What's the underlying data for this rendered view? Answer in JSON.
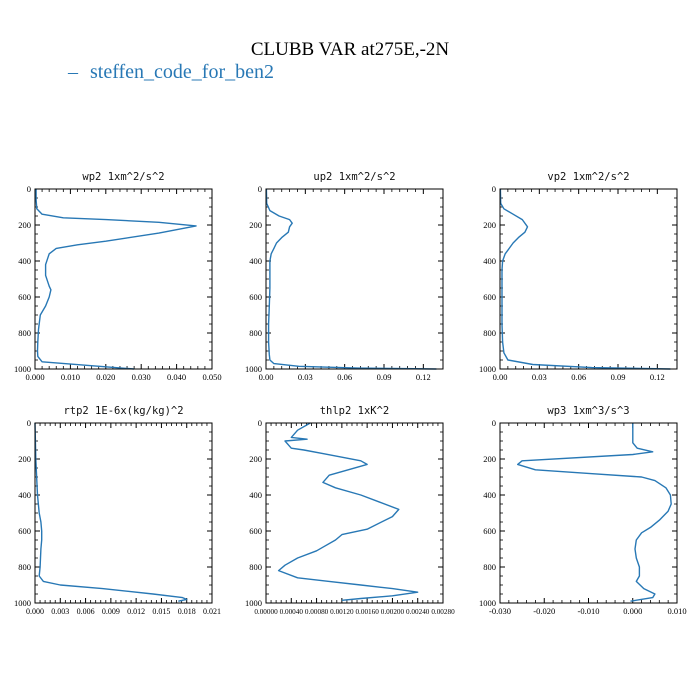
{
  "figure": {
    "title": "CLUBB VAR at275E,-2N",
    "legend": {
      "marker": "–",
      "label": "steffen_code_for_ben2",
      "color": "#2878b5"
    }
  },
  "chart_data": [
    {
      "type": "line",
      "title": "wp2  1xm^2/s^2",
      "xlim": [
        0,
        0.05
      ],
      "xticks": [
        "0.000",
        "0.010",
        "0.020",
        "0.030",
        "0.040",
        "0.050"
      ],
      "xtick_values": [
        0,
        0.01,
        0.02,
        0.03,
        0.04,
        0.05
      ],
      "ylim": [
        1000,
        0
      ],
      "yticks": [
        "0",
        "200",
        "400",
        "600",
        "800",
        "1000"
      ],
      "ytick_values": [
        0,
        200,
        400,
        600,
        800,
        1000
      ],
      "series": [
        {
          "color": "#2878b5",
          "x": [
            0.0003,
            0.0003,
            0.0005,
            0.002,
            0.008,
            0.02,
            0.035,
            0.0455,
            0.035,
            0.02,
            0.012,
            0.006,
            0.004,
            0.0035,
            0.003,
            0.003,
            0.003,
            0.0035,
            0.004,
            0.0045,
            0.004,
            0.003,
            0.0015,
            0.001,
            0.0008,
            0.0007,
            0.0008,
            0.002,
            0.015,
            0.028
          ],
          "y": [
            0,
            60,
            110,
            140,
            160,
            170,
            185,
            205,
            245,
            290,
            310,
            330,
            360,
            390,
            420,
            450,
            480,
            510,
            540,
            560,
            600,
            650,
            700,
            780,
            850,
            900,
            930,
            960,
            980,
            1000
          ]
        }
      ]
    },
    {
      "type": "line",
      "title": "up2  1xm^2/s^2",
      "xlim": [
        0,
        0.135
      ],
      "xticks": [
        "0.00",
        "0.03",
        "0.06",
        "0.09",
        "0.12"
      ],
      "xtick_values": [
        0,
        0.03,
        0.06,
        0.09,
        0.12
      ],
      "ylim": [
        1000,
        0
      ],
      "yticks": [
        "0",
        "200",
        "400",
        "600",
        "800",
        "1000"
      ],
      "ytick_values": [
        0,
        200,
        400,
        600,
        800,
        1000
      ],
      "series": [
        {
          "color": "#2878b5",
          "x": [
            0.0003,
            0.0005,
            0.003,
            0.01,
            0.018,
            0.02,
            0.018,
            0.017,
            0.012,
            0.008,
            0.006,
            0.004,
            0.003,
            0.003,
            0.003,
            0.0025,
            0.002,
            0.002,
            0.0025,
            0.003,
            0.006,
            0.025,
            0.07,
            0.13
          ],
          "y": [
            0,
            80,
            120,
            150,
            170,
            190,
            210,
            240,
            270,
            300,
            330,
            360,
            400,
            460,
            550,
            650,
            750,
            850,
            920,
            950,
            970,
            985,
            995,
            1000
          ]
        }
      ]
    },
    {
      "type": "line",
      "title": "vp2  1xm^2/s^2",
      "xlim": [
        0,
        0.135
      ],
      "xticks": [
        "0.00",
        "0.03",
        "0.06",
        "0.09",
        "0.12"
      ],
      "xtick_values": [
        0,
        0.03,
        0.06,
        0.09,
        0.12
      ],
      "ylim": [
        1000,
        0
      ],
      "yticks": [
        "0",
        "200",
        "400",
        "600",
        "800",
        "1000"
      ],
      "ytick_values": [
        0,
        200,
        400,
        600,
        800,
        1000
      ],
      "series": [
        {
          "color": "#2878b5",
          "x": [
            0.0003,
            0.0005,
            0.003,
            0.01,
            0.017,
            0.021,
            0.019,
            0.014,
            0.01,
            0.007,
            0.004,
            0.002,
            0.0015,
            0.0015,
            0.0015,
            0.0015,
            0.002,
            0.003,
            0.006,
            0.025,
            0.07,
            0.13
          ],
          "y": [
            0,
            80,
            110,
            140,
            170,
            210,
            240,
            270,
            300,
            330,
            360,
            400,
            450,
            550,
            650,
            750,
            850,
            910,
            950,
            975,
            992,
            1000
          ]
        }
      ]
    },
    {
      "type": "line",
      "title": "rtp2  1E-6x(kg/kg)^2",
      "xlim": [
        0,
        0.021
      ],
      "xticks": [
        "0.000",
        "0.003",
        "0.006",
        "0.009",
        "0.012",
        "0.015",
        "0.018",
        "0.021"
      ],
      "xtick_values": [
        0,
        0.003,
        0.006,
        0.009,
        0.012,
        0.015,
        0.018,
        0.021
      ],
      "ylim": [
        1000,
        0
      ],
      "yticks": [
        "0",
        "200",
        "400",
        "600",
        "800",
        "1000"
      ],
      "ytick_values": [
        0,
        200,
        400,
        600,
        800,
        1000
      ],
      "series": [
        {
          "color": "#2878b5",
          "x": [
            0.0,
            0.0001,
            0.0003,
            0.0005,
            0.0007,
            0.0008,
            0.0008,
            0.0007,
            0.0006,
            0.0005,
            0.001,
            0.003,
            0.008,
            0.014,
            0.0175,
            0.018,
            0.017
          ],
          "y": [
            0,
            200,
            400,
            500,
            550,
            600,
            650,
            700,
            800,
            850,
            880,
            900,
            920,
            950,
            970,
            980,
            990
          ]
        }
      ]
    },
    {
      "type": "line",
      "title": "thlp2  1xK^2",
      "xlim": [
        0,
        0.0028
      ],
      "xticks": [
        "0.00000",
        "0.00040",
        "0.00080",
        "0.00120",
        "0.00160",
        "0.00200",
        "0.00240",
        "0.00280"
      ],
      "xtick_values": [
        0,
        0.0004,
        0.0008,
        0.0012,
        0.0016,
        0.002,
        0.0024,
        0.0028
      ],
      "ylim": [
        1000,
        0
      ],
      "yticks": [
        "0",
        "200",
        "400",
        "600",
        "800",
        "1000"
      ],
      "ytick_values": [
        0,
        200,
        400,
        600,
        800,
        1000
      ],
      "series": [
        {
          "color": "#2878b5",
          "x": [
            0.0007,
            0.0005,
            0.0004,
            0.00065,
            0.0003,
            0.0004,
            0.0006,
            0.0009,
            0.0012,
            0.0015,
            0.0016,
            0.0013,
            0.001,
            0.0009,
            0.0011,
            0.0015,
            0.0018,
            0.0021,
            0.002,
            0.0016,
            0.0012,
            0.0011,
            0.0009,
            0.0008,
            0.0005,
            0.0003,
            0.0002,
            0.0005,
            0.001,
            0.0015,
            0.002,
            0.0024,
            0.002,
            0.0015,
            0.0012
          ],
          "y": [
            0,
            40,
            80,
            90,
            100,
            140,
            150,
            170,
            190,
            210,
            230,
            260,
            290,
            330,
            360,
            400,
            440,
            480,
            520,
            590,
            620,
            650,
            690,
            710,
            750,
            790,
            820,
            860,
            880,
            900,
            920,
            940,
            960,
            975,
            985
          ]
        }
      ]
    },
    {
      "type": "line",
      "title": "wp3  1xm^3/s^3",
      "xlim": [
        -0.03,
        0.01
      ],
      "xticks": [
        "-0.030",
        "-0.020",
        "-0.010",
        "0.000",
        "0.010"
      ],
      "xtick_values": [
        -0.03,
        -0.02,
        -0.01,
        0,
        0.01
      ],
      "ylim": [
        1000,
        0
      ],
      "yticks": [
        "0",
        "200",
        "400",
        "600",
        "800",
        "1000"
      ],
      "ytick_values": [
        0,
        200,
        400,
        600,
        800,
        1000
      ],
      "series": [
        {
          "color": "#2878b5",
          "x": [
            0.0,
            0.0,
            0.0,
            0.001,
            0.0045,
            0.0,
            -0.025,
            -0.026,
            -0.022,
            -0.01,
            0.002,
            0.005,
            0.0075,
            0.0085,
            0.0087,
            0.008,
            0.006,
            0.004,
            0.002,
            0.0008,
            0.0005,
            0.0008,
            0.0015,
            0.0015,
            0.0008,
            0.0025,
            0.005,
            0.0045,
            -0.0005
          ],
          "y": [
            0,
            50,
            110,
            140,
            160,
            175,
            210,
            230,
            260,
            280,
            300,
            320,
            360,
            400,
            450,
            490,
            540,
            580,
            610,
            650,
            700,
            750,
            800,
            850,
            880,
            920,
            950,
            970,
            990
          ]
        }
      ]
    }
  ]
}
